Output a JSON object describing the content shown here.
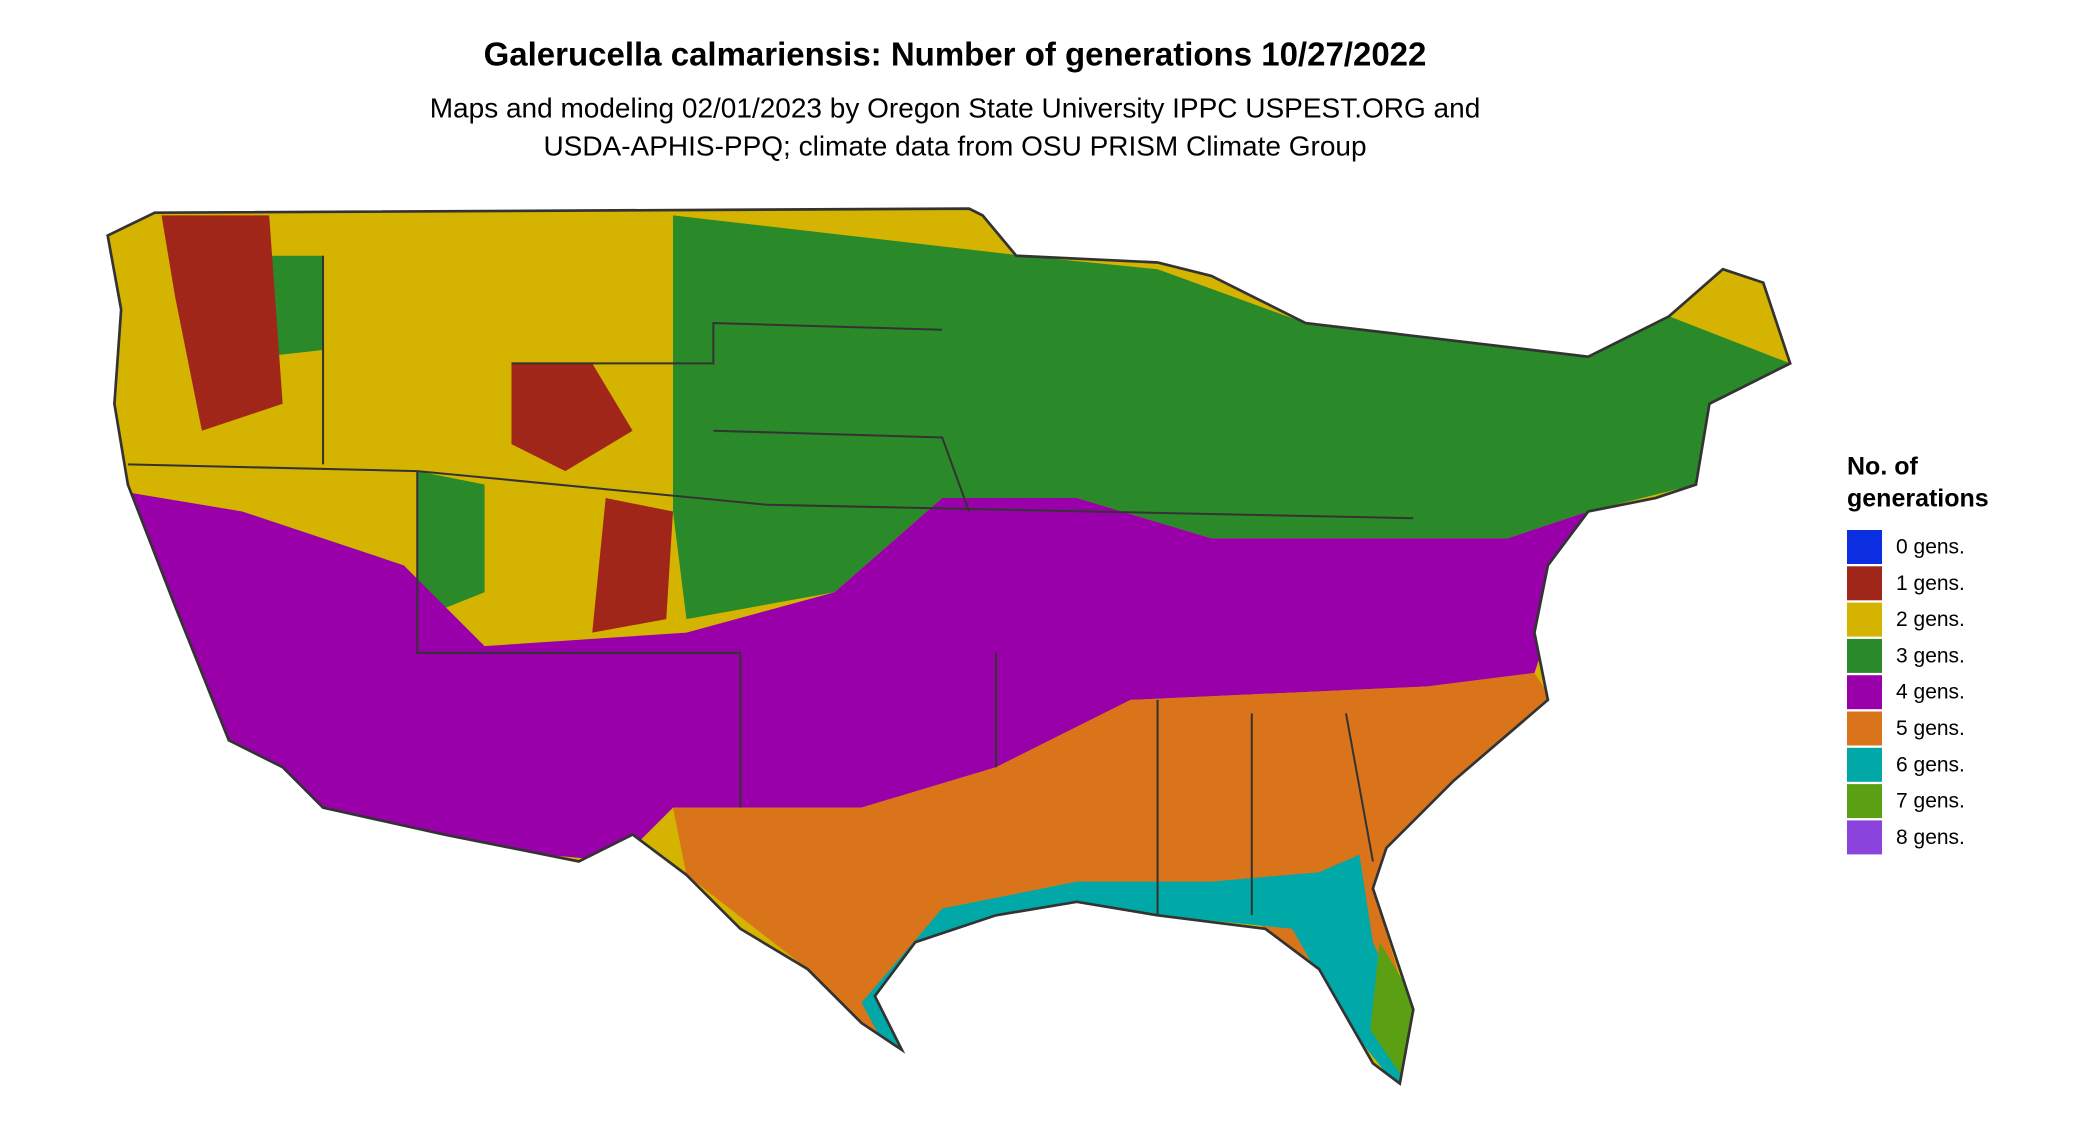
{
  "title": "Galerucella calmariensis: Number of generations 10/27/2022",
  "subtitle": [
    "Maps and modeling 02/01/2023 by Oregon State University IPPC USPEST.ORG and",
    "USDA-APHIS-PPQ; climate data from OSU PRISM Climate Group"
  ],
  "legend": {
    "title": [
      "No. of",
      "generations"
    ],
    "items": [
      {
        "label": "0 gens.",
        "color": "#0a2ee0"
      },
      {
        "label": "1 gens.",
        "color": "#a0261a"
      },
      {
        "label": "2 gens.",
        "color": "#d4b400"
      },
      {
        "label": "3 gens.",
        "color": "#2a8a2a"
      },
      {
        "label": "4 gens.",
        "color": "#9a00aa"
      },
      {
        "label": "5 gens.",
        "color": "#d9741a"
      },
      {
        "label": "6 gens.",
        "color": "#00a8a8"
      },
      {
        "label": "7 gens.",
        "color": "#5aa012"
      },
      {
        "label": "8 gens.",
        "color": "#8a44dd"
      }
    ]
  }
}
